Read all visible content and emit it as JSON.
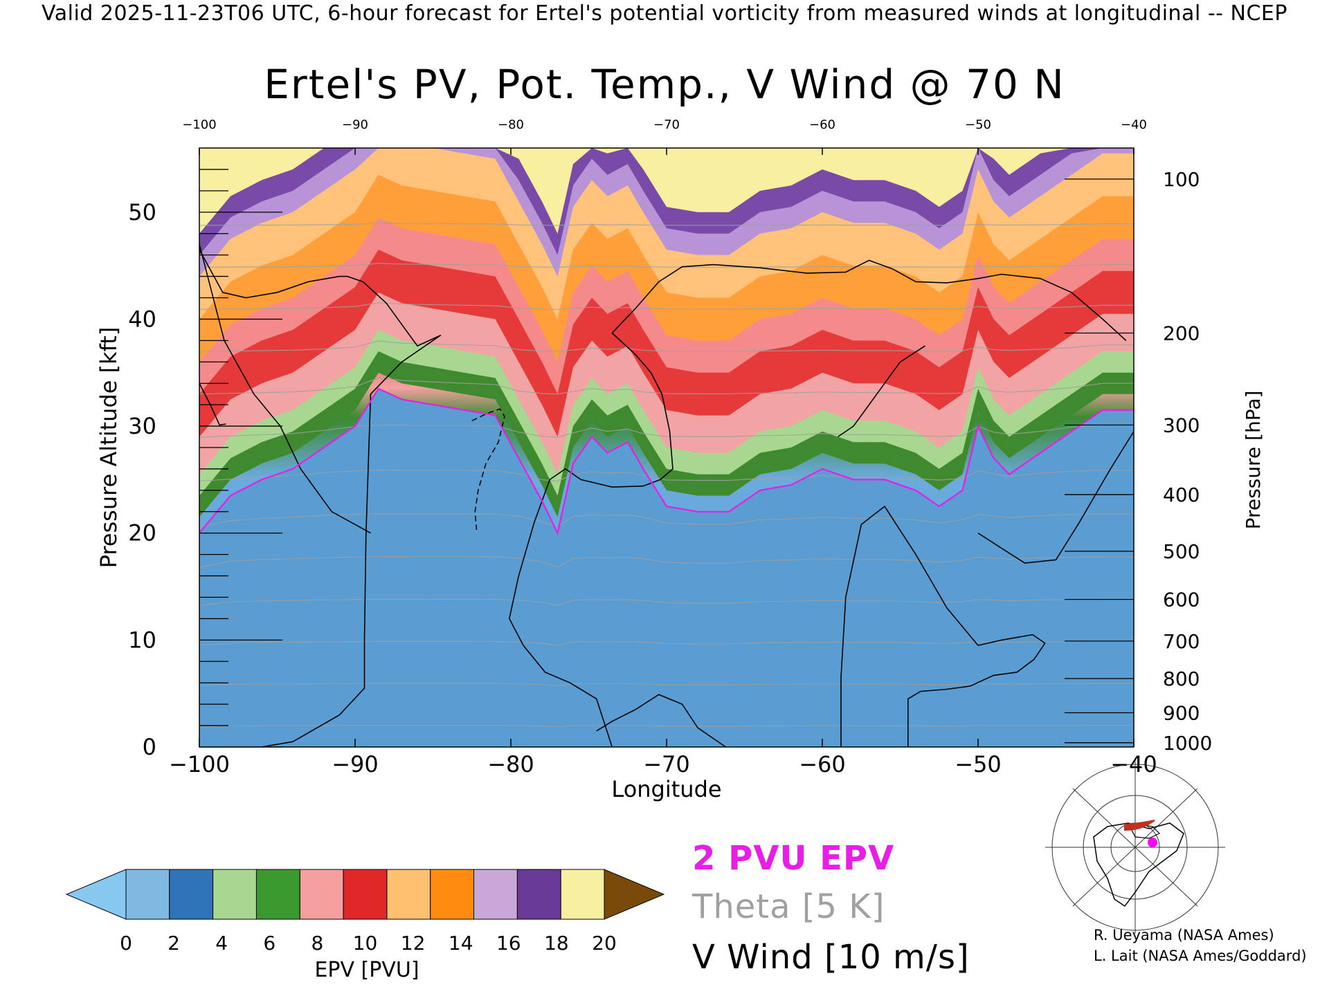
{
  "header": {
    "text": "Valid 2025-11-23T06 UTC, 6-hour forecast for Ertel's potential vorticity from measured winds at longitudinal -- NCEP"
  },
  "title": "Ertel's PV, Pot. Temp., V Wind @ 70 N",
  "legend": {
    "epv_label": "2 PVU EPV",
    "theta_label": "Theta [5 K]",
    "vwind_label": "V Wind [10 m/s]",
    "colors": {
      "epv": "#e61ee6",
      "theta": "#a0a0a0",
      "vwind": "#000000"
    }
  },
  "colorbar": {
    "label": "EPV [PVU]",
    "tick_labels": [
      "0",
      "2",
      "4",
      "6",
      "8",
      "10",
      "12",
      "14",
      "16",
      "18",
      "20"
    ],
    "under_color": "#87c8f0",
    "over_color": "#7a4a0a",
    "colors": [
      "#7fb8e0",
      "#2f74b8",
      "#a8d890",
      "#3a9a30",
      "#f4a0a0",
      "#e02828",
      "#ffc070",
      "#ff8c10",
      "#c8a8d8",
      "#6a3a98",
      "#f8f0a0"
    ]
  },
  "credits": {
    "line1": "R. Ueyama (NASA Ames)",
    "line2": "L. Lait (NASA Ames/Goddard)"
  },
  "chart_data": {
    "type": "heatmap",
    "title": "Ertel's PV, Pot. Temp., V Wind @ 70 N",
    "xlabel": "Longitude",
    "ylabel": "Pressure Altitude [kft]",
    "y2label": "Pressure [hPa]",
    "xlim": [
      -100,
      -40
    ],
    "ylim": [
      0,
      56
    ],
    "x_ticks": [
      "−100",
      "−90",
      "−80",
      "−70",
      "−60",
      "−50",
      "−40"
    ],
    "x_tick_values": [
      -100,
      -90,
      -80,
      -70,
      -60,
      -50,
      -40
    ],
    "top_ticks": [
      "−100",
      "−90",
      "−80",
      "−70",
      "−60",
      "−50",
      "−40"
    ],
    "y_ticks": [
      "0",
      "10",
      "20",
      "30",
      "40",
      "50"
    ],
    "y_tick_values": [
      0,
      10,
      20,
      30,
      40,
      50
    ],
    "pressure_ticks": [
      {
        "label": "100",
        "kft": 53.1
      },
      {
        "label": "200",
        "kft": 38.7
      },
      {
        "label": "300",
        "kft": 30.1
      },
      {
        "label": "400",
        "kft": 23.6
      },
      {
        "label": "500",
        "kft": 18.3
      },
      {
        "label": "600",
        "kft": 13.8
      },
      {
        "label": "700",
        "kft": 9.9
      },
      {
        "label": "800",
        "kft": 6.4
      },
      {
        "label": "900",
        "kft": 3.2
      },
      {
        "label": "1000",
        "kft": 0.4
      }
    ],
    "pv2_contour": {
      "name": "2 PVU EPV",
      "lon": [
        -100,
        -98,
        -96,
        -94,
        -92,
        -90,
        -88.5,
        -87,
        -85,
        -83,
        -81,
        -79.5,
        -78,
        -77,
        -76,
        -74.8,
        -73.8,
        -72.5,
        -71.5,
        -70,
        -68,
        -66,
        -64,
        -62,
        -60,
        -58,
        -56,
        -54,
        -52.5,
        -51,
        -50,
        -49,
        -48,
        -46,
        -44,
        -42,
        -40
      ],
      "kft": [
        20,
        23.5,
        25,
        26,
        28,
        30,
        33.5,
        32.5,
        32,
        31.5,
        31,
        27,
        23,
        20,
        26.5,
        29,
        27.5,
        28.5,
        26,
        22.5,
        22,
        22,
        24,
        24.5,
        26,
        25,
        25,
        24,
        22.5,
        24,
        30,
        27,
        25.5,
        27.5,
        29.5,
        31.5,
        31.5
      ]
    },
    "vwind_contours": [
      {
        "label": "0",
        "lon": [
          -100,
          -98.5,
          -97,
          -95,
          -93,
          -91,
          -90.5,
          -89.5,
          -88,
          -87,
          -86,
          -84.5
        ],
        "kft": [
          46.5,
          42.5,
          42,
          42.5,
          43.5,
          44,
          44,
          43.5,
          41.5,
          39.5,
          37.5,
          38.5
        ]
      },
      {
        "label": "0",
        "lon": [
          -84.5,
          -87,
          -89,
          -89.3,
          -89.4,
          -89.4,
          -91,
          -94,
          -96
        ],
        "kft": [
          38.5,
          36,
          33,
          20,
          10,
          5.5,
          3,
          0.5,
          0
        ]
      },
      {
        "label": "0",
        "lon": [
          -73.5,
          -72,
          -70.5,
          -69,
          -67,
          -64,
          -61,
          -58.5,
          -57,
          -55.5,
          -54,
          -52,
          -50,
          -48.5,
          -46,
          -44,
          -42,
          -40.5
        ],
        "kft": [
          38.7,
          41,
          43.5,
          44.9,
          45.1,
          44.8,
          44.3,
          44.4,
          45.5,
          44.7,
          43.5,
          43.4,
          43.8,
          44.2,
          43.8,
          42.5,
          40,
          38
        ]
      },
      {
        "label": "0",
        "lon": [
          -73.5,
          -72,
          -71,
          -70.3,
          -69.8,
          -69.6,
          -70.4,
          -71.5,
          -73.5,
          -75.5,
          -76.5,
          -77.5
        ],
        "kft": [
          38.7,
          36.7,
          35,
          33,
          29.5,
          26,
          25,
          24.4,
          24.3,
          25,
          26,
          25
        ]
      },
      {
        "label": "0",
        "lon": [
          -77.5,
          -78.5,
          -79.5,
          -80.1,
          -79.2,
          -77.8,
          -76.2,
          -74.5,
          -73.5
        ],
        "kft": [
          25,
          21,
          16,
          12,
          9.5,
          7,
          6,
          4.5,
          0
        ]
      },
      {
        "label": "0",
        "lon": [
          -50,
          -52,
          -54,
          -56,
          -57.5,
          -58.5,
          -58.8,
          -58.8
        ],
        "kft": [
          9.5,
          13,
          18,
          22.5,
          20.8,
          14,
          6.5,
          0
        ]
      },
      {
        "label": "0",
        "lon": [
          -50,
          -48.5,
          -46.5,
          -45.7,
          -46.4,
          -47.5,
          -49,
          -50.5,
          -52,
          -53.7,
          -54.5,
          -54.5
        ],
        "kft": [
          9.5,
          10,
          10.5,
          9.7,
          8.2,
          7,
          6.7,
          5.7,
          5.4,
          5.2,
          4.5,
          0
        ]
      },
      {
        "label": "0",
        "lon": [
          -66.2,
          -67,
          -68,
          -69,
          -70.5,
          -72,
          -73.5,
          -74.5
        ],
        "kft": [
          0,
          0.8,
          1.8,
          4,
          4.9,
          3.5,
          2.4,
          1.5
        ]
      },
      {
        "label": "70",
        "lon": [
          -100,
          -99.3,
          -98.7,
          -98.3
        ],
        "kft": [
          34,
          32,
          30.1,
          30.2
        ]
      },
      {
        "label": "70",
        "lon": [
          -100,
          -98.4,
          -96.5,
          -94.8,
          -93.5,
          -91.5,
          -89
        ],
        "kft": [
          47,
          38,
          33,
          30,
          26,
          22,
          20
        ]
      },
      {
        "label": "70",
        "lon": [
          -40,
          -41.5,
          -43.5,
          -45,
          -47,
          -48.4,
          -50
        ],
        "kft": [
          29.5,
          26,
          21,
          17.5,
          17.2,
          18.5,
          20
        ]
      },
      {
        "label": "70",
        "lon": [
          -53.4,
          -55,
          -56,
          -57.5,
          -58,
          -59
        ],
        "kft": [
          37.5,
          36,
          34,
          31,
          30,
          29
        ]
      },
      {
        "label": "-70",
        "dashed": true,
        "lon": [
          -82.5,
          -81.5,
          -80.7,
          -80.4,
          -80.8,
          -81.6,
          -82.1,
          -82.3,
          -82.2
        ],
        "kft": [
          30.5,
          31.2,
          31.6,
          30.9,
          28.5,
          26.5,
          24,
          22,
          20.3
        ]
      }
    ],
    "theta_levels": [
      300,
      310,
      320,
      330,
      340,
      350,
      360,
      370,
      380,
      390,
      400,
      410,
      420
    ]
  },
  "inset_map": {
    "description_icon": "polar-map-icon"
  }
}
